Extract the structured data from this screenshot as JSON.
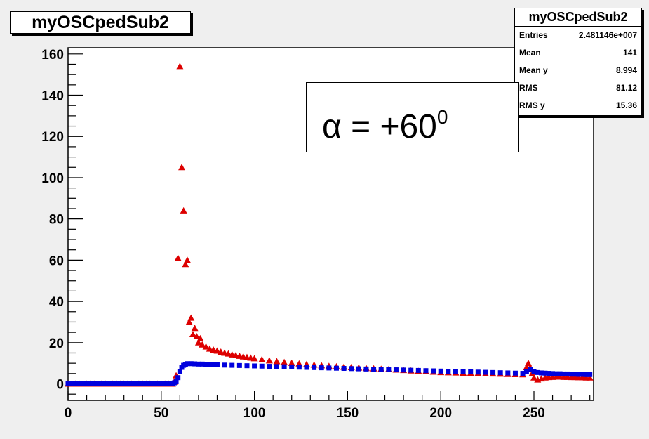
{
  "chart_data": {
    "type": "scatter",
    "title": "myOSCpedSub2",
    "xlabel": "",
    "ylabel": "",
    "xlim": [
      0,
      282
    ],
    "ylim": [
      -8,
      163
    ],
    "xticks": [
      "0",
      "50",
      "100",
      "150",
      "200",
      "250"
    ],
    "yticks": [
      "0",
      "20",
      "40",
      "60",
      "80",
      "100",
      "120",
      "140",
      "160"
    ],
    "grid": false,
    "stats": {
      "title": "myOSCpedSub2",
      "rows": [
        {
          "label": "Entries",
          "value": "2.481146e+007"
        },
        {
          "label": "Mean",
          "value": "141"
        },
        {
          "label": "Mean y",
          "value": "8.994"
        },
        {
          "label": "RMS",
          "value": "81.12"
        },
        {
          "label": "RMS y",
          "value": "15.36"
        }
      ]
    },
    "annotation": {
      "text": "α = +60",
      "superscript": "0"
    },
    "series": [
      {
        "marker": "triangle",
        "color": "#dd0000",
        "points": [
          [
            0,
            0
          ],
          [
            2,
            0
          ],
          [
            4,
            0
          ],
          [
            6,
            0
          ],
          [
            8,
            0
          ],
          [
            10,
            0
          ],
          [
            12,
            0
          ],
          [
            14,
            0
          ],
          [
            16,
            0
          ],
          [
            18,
            0
          ],
          [
            20,
            0
          ],
          [
            22,
            0
          ],
          [
            24,
            0
          ],
          [
            26,
            0
          ],
          [
            28,
            0
          ],
          [
            30,
            0
          ],
          [
            32,
            0
          ],
          [
            34,
            0
          ],
          [
            36,
            0
          ],
          [
            38,
            0
          ],
          [
            40,
            0
          ],
          [
            42,
            0
          ],
          [
            44,
            0
          ],
          [
            46,
            0
          ],
          [
            48,
            0
          ],
          [
            50,
            0
          ],
          [
            52,
            0
          ],
          [
            54,
            0
          ],
          [
            56,
            0
          ],
          [
            57,
            1
          ],
          [
            58,
            4
          ],
          [
            59,
            61
          ],
          [
            60,
            154
          ],
          [
            61,
            105
          ],
          [
            62,
            84
          ],
          [
            63,
            58
          ],
          [
            64,
            60
          ],
          [
            65,
            30
          ],
          [
            66,
            32
          ],
          [
            67,
            24
          ],
          [
            68,
            27
          ],
          [
            69,
            23
          ],
          [
            70,
            20
          ],
          [
            71,
            22
          ],
          [
            72,
            19
          ],
          [
            74,
            18
          ],
          [
            76,
            17
          ],
          [
            78,
            16.5
          ],
          [
            80,
            16
          ],
          [
            82,
            15.5
          ],
          [
            84,
            15
          ],
          [
            86,
            14.6
          ],
          [
            88,
            14.2
          ],
          [
            90,
            13.8
          ],
          [
            92,
            13.5
          ],
          [
            94,
            13.2
          ],
          [
            96,
            12.9
          ],
          [
            98,
            12.6
          ],
          [
            100,
            12.3
          ],
          [
            104,
            11.8
          ],
          [
            108,
            11.3
          ],
          [
            112,
            10.9
          ],
          [
            116,
            10.5
          ],
          [
            120,
            10.1
          ],
          [
            124,
            9.8
          ],
          [
            128,
            9.5
          ],
          [
            132,
            9.2
          ],
          [
            136,
            8.9
          ],
          [
            140,
            8.6
          ],
          [
            144,
            8.4
          ],
          [
            148,
            8.2
          ],
          [
            152,
            8.0
          ],
          [
            156,
            7.8
          ],
          [
            160,
            7.6
          ],
          [
            164,
            7.4
          ],
          [
            168,
            7.2
          ],
          [
            172,
            7.0
          ],
          [
            176,
            6.8
          ],
          [
            180,
            6.6
          ],
          [
            184,
            6.4
          ],
          [
            188,
            6.2
          ],
          [
            192,
            6.0
          ],
          [
            196,
            5.8
          ],
          [
            200,
            5.6
          ],
          [
            204,
            5.5
          ],
          [
            208,
            5.4
          ],
          [
            212,
            5.3
          ],
          [
            216,
            5.2
          ],
          [
            220,
            5.1
          ],
          [
            224,
            5.0
          ],
          [
            228,
            4.9
          ],
          [
            232,
            4.8
          ],
          [
            236,
            4.7
          ],
          [
            240,
            4.6
          ],
          [
            244,
            4.5
          ],
          [
            246,
            8
          ],
          [
            247,
            10
          ],
          [
            248,
            8
          ],
          [
            249,
            5
          ],
          [
            250,
            3
          ],
          [
            252,
            2
          ],
          [
            254,
            2.5
          ],
          [
            256,
            3
          ],
          [
            258,
            3.2
          ],
          [
            260,
            3.3
          ],
          [
            262,
            3.4
          ],
          [
            264,
            3.4
          ],
          [
            266,
            3.3
          ],
          [
            268,
            3.3
          ],
          [
            270,
            3.2
          ],
          [
            272,
            3.2
          ],
          [
            274,
            3.1
          ],
          [
            276,
            3.1
          ],
          [
            278,
            3.0
          ],
          [
            280,
            3.0
          ]
        ]
      },
      {
        "marker": "square",
        "color": "#0000dd",
        "points": [
          [
            0,
            0
          ],
          [
            2,
            0
          ],
          [
            4,
            0
          ],
          [
            6,
            0
          ],
          [
            8,
            0
          ],
          [
            10,
            0
          ],
          [
            12,
            0
          ],
          [
            14,
            0
          ],
          [
            16,
            0
          ],
          [
            18,
            0
          ],
          [
            20,
            0
          ],
          [
            22,
            0
          ],
          [
            24,
            0
          ],
          [
            26,
            0
          ],
          [
            28,
            0
          ],
          [
            30,
            0
          ],
          [
            32,
            0
          ],
          [
            34,
            0
          ],
          [
            36,
            0
          ],
          [
            38,
            0
          ],
          [
            40,
            0
          ],
          [
            42,
            0
          ],
          [
            44,
            0
          ],
          [
            46,
            0
          ],
          [
            48,
            0
          ],
          [
            50,
            0
          ],
          [
            52,
            0
          ],
          [
            54,
            0
          ],
          [
            56,
            0
          ],
          [
            57,
            0.5
          ],
          [
            58,
            1
          ],
          [
            59,
            3
          ],
          [
            60,
            6
          ],
          [
            61,
            8
          ],
          [
            62,
            9
          ],
          [
            63,
            9.5
          ],
          [
            64,
            9.8
          ],
          [
            66,
            9.8
          ],
          [
            68,
            9.7
          ],
          [
            70,
            9.6
          ],
          [
            72,
            9.6
          ],
          [
            74,
            9.5
          ],
          [
            76,
            9.4
          ],
          [
            78,
            9.3
          ],
          [
            80,
            9.2
          ],
          [
            84,
            9.1
          ],
          [
            88,
            9.0
          ],
          [
            92,
            8.9
          ],
          [
            96,
            8.8
          ],
          [
            100,
            8.7
          ],
          [
            104,
            8.6
          ],
          [
            108,
            8.5
          ],
          [
            112,
            8.4
          ],
          [
            116,
            8.3
          ],
          [
            120,
            8.2
          ],
          [
            124,
            8.1
          ],
          [
            128,
            8.0
          ],
          [
            132,
            7.9
          ],
          [
            136,
            7.8
          ],
          [
            140,
            7.7
          ],
          [
            144,
            7.6
          ],
          [
            148,
            7.5
          ],
          [
            152,
            7.4
          ],
          [
            156,
            7.3
          ],
          [
            160,
            7.2
          ],
          [
            164,
            7.1
          ],
          [
            168,
            7.0
          ],
          [
            172,
            6.9
          ],
          [
            176,
            6.8
          ],
          [
            180,
            6.7
          ],
          [
            184,
            6.6
          ],
          [
            188,
            6.5
          ],
          [
            192,
            6.4
          ],
          [
            196,
            6.3
          ],
          [
            200,
            6.2
          ],
          [
            204,
            6.1
          ],
          [
            208,
            6.0
          ],
          [
            212,
            5.9
          ],
          [
            216,
            5.8
          ],
          [
            220,
            5.7
          ],
          [
            224,
            5.6
          ],
          [
            228,
            5.5
          ],
          [
            232,
            5.4
          ],
          [
            236,
            5.3
          ],
          [
            240,
            5.2
          ],
          [
            244,
            5.1
          ],
          [
            246,
            6
          ],
          [
            248,
            7
          ],
          [
            250,
            6
          ],
          [
            252,
            5.5
          ],
          [
            254,
            5.3
          ],
          [
            256,
            5.2
          ],
          [
            258,
            5.1
          ],
          [
            260,
            5.0
          ],
          [
            262,
            4.9
          ],
          [
            264,
            4.9
          ],
          [
            266,
            4.8
          ],
          [
            268,
            4.8
          ],
          [
            270,
            4.7
          ],
          [
            272,
            4.7
          ],
          [
            274,
            4.6
          ],
          [
            276,
            4.6
          ],
          [
            278,
            4.5
          ],
          [
            280,
            4.5
          ]
        ]
      }
    ]
  }
}
